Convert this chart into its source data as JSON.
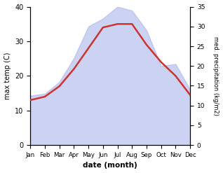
{
  "months": [
    "Jan",
    "Feb",
    "Mar",
    "Apr",
    "May",
    "Jun",
    "Jul",
    "Aug",
    "Sep",
    "Oct",
    "Nov",
    "Dec"
  ],
  "x": [
    0,
    1,
    2,
    3,
    4,
    5,
    6,
    7,
    8,
    9,
    10,
    11
  ],
  "temperature": [
    13.0,
    14.0,
    17.0,
    22.0,
    28.0,
    34.0,
    35.0,
    35.0,
    29.0,
    24.0,
    20.0,
    14.5
  ],
  "precipitation": [
    12.5,
    13.0,
    16.0,
    22.0,
    30.0,
    32.0,
    35.0,
    34.0,
    29.0,
    20.0,
    20.5,
    14.0
  ],
  "temp_ylim": [
    0,
    40
  ],
  "precip_ylim": [
    0,
    35
  ],
  "temp_yticks": [
    0,
    10,
    20,
    30,
    40
  ],
  "precip_yticks": [
    0,
    5,
    10,
    15,
    20,
    25,
    30,
    35
  ],
  "ylabel_left": "max temp (C)",
  "ylabel_right": "med. precipitation (kg/m2)",
  "xlabel": "date (month)",
  "fill_color": "#aab4e8",
  "line_color": "#cc3333",
  "fill_alpha": 0.6,
  "background_color": "#ffffff",
  "figsize": [
    3.18,
    2.47
  ],
  "dpi": 100
}
